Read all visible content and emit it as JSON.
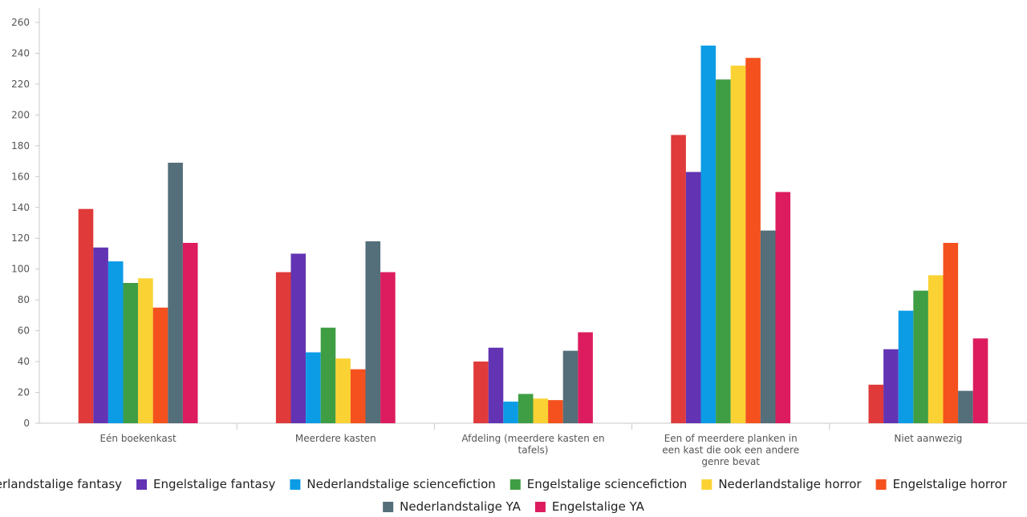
{
  "chart_data": {
    "type": "bar",
    "title": "",
    "xlabel": "",
    "ylabel": "",
    "ylim": [
      0,
      260
    ],
    "yticks": [
      0,
      20,
      40,
      60,
      80,
      100,
      120,
      140,
      160,
      180,
      200,
      220,
      240,
      260
    ],
    "grid": false,
    "legend_position": "bottom",
    "categories": [
      [
        "Eén boekenkast"
      ],
      [
        "Meerdere kasten"
      ],
      [
        "Afdeling (meerdere kasten en",
        "tafels)"
      ],
      [
        "Een of meerdere planken in",
        "een kast die ook een andere",
        "genre bevat"
      ],
      [
        "Niet aanwezig"
      ]
    ],
    "series": [
      {
        "name": "Nederlandstalige fantasy",
        "color": "#e03a3a",
        "values": [
          139,
          98,
          40,
          187,
          25
        ]
      },
      {
        "name": "Engelstalige fantasy",
        "color": "#6234b3",
        "values": [
          114,
          110,
          49,
          163,
          48
        ]
      },
      {
        "name": "Nederlandstalige sciencefiction",
        "color": "#0c9ce6",
        "values": [
          105,
          46,
          14,
          245,
          73
        ]
      },
      {
        "name": "Engelstalige sciencefiction",
        "color": "#3f9e44",
        "values": [
          91,
          62,
          19,
          223,
          86
        ]
      },
      {
        "name": "Nederlandstalige horror",
        "color": "#fbd233",
        "values": [
          94,
          42,
          16,
          232,
          96
        ]
      },
      {
        "name": "Engelstalige horror",
        "color": "#f4511e",
        "values": [
          75,
          35,
          15,
          237,
          117
        ]
      },
      {
        "name": "Nederlandstalige YA",
        "color": "#546e7a",
        "values": [
          169,
          118,
          47,
          125,
          21
        ]
      },
      {
        "name": "Engelstalige YA",
        "color": "#dc1c5e",
        "values": [
          117,
          98,
          59,
          150,
          55
        ]
      }
    ]
  }
}
